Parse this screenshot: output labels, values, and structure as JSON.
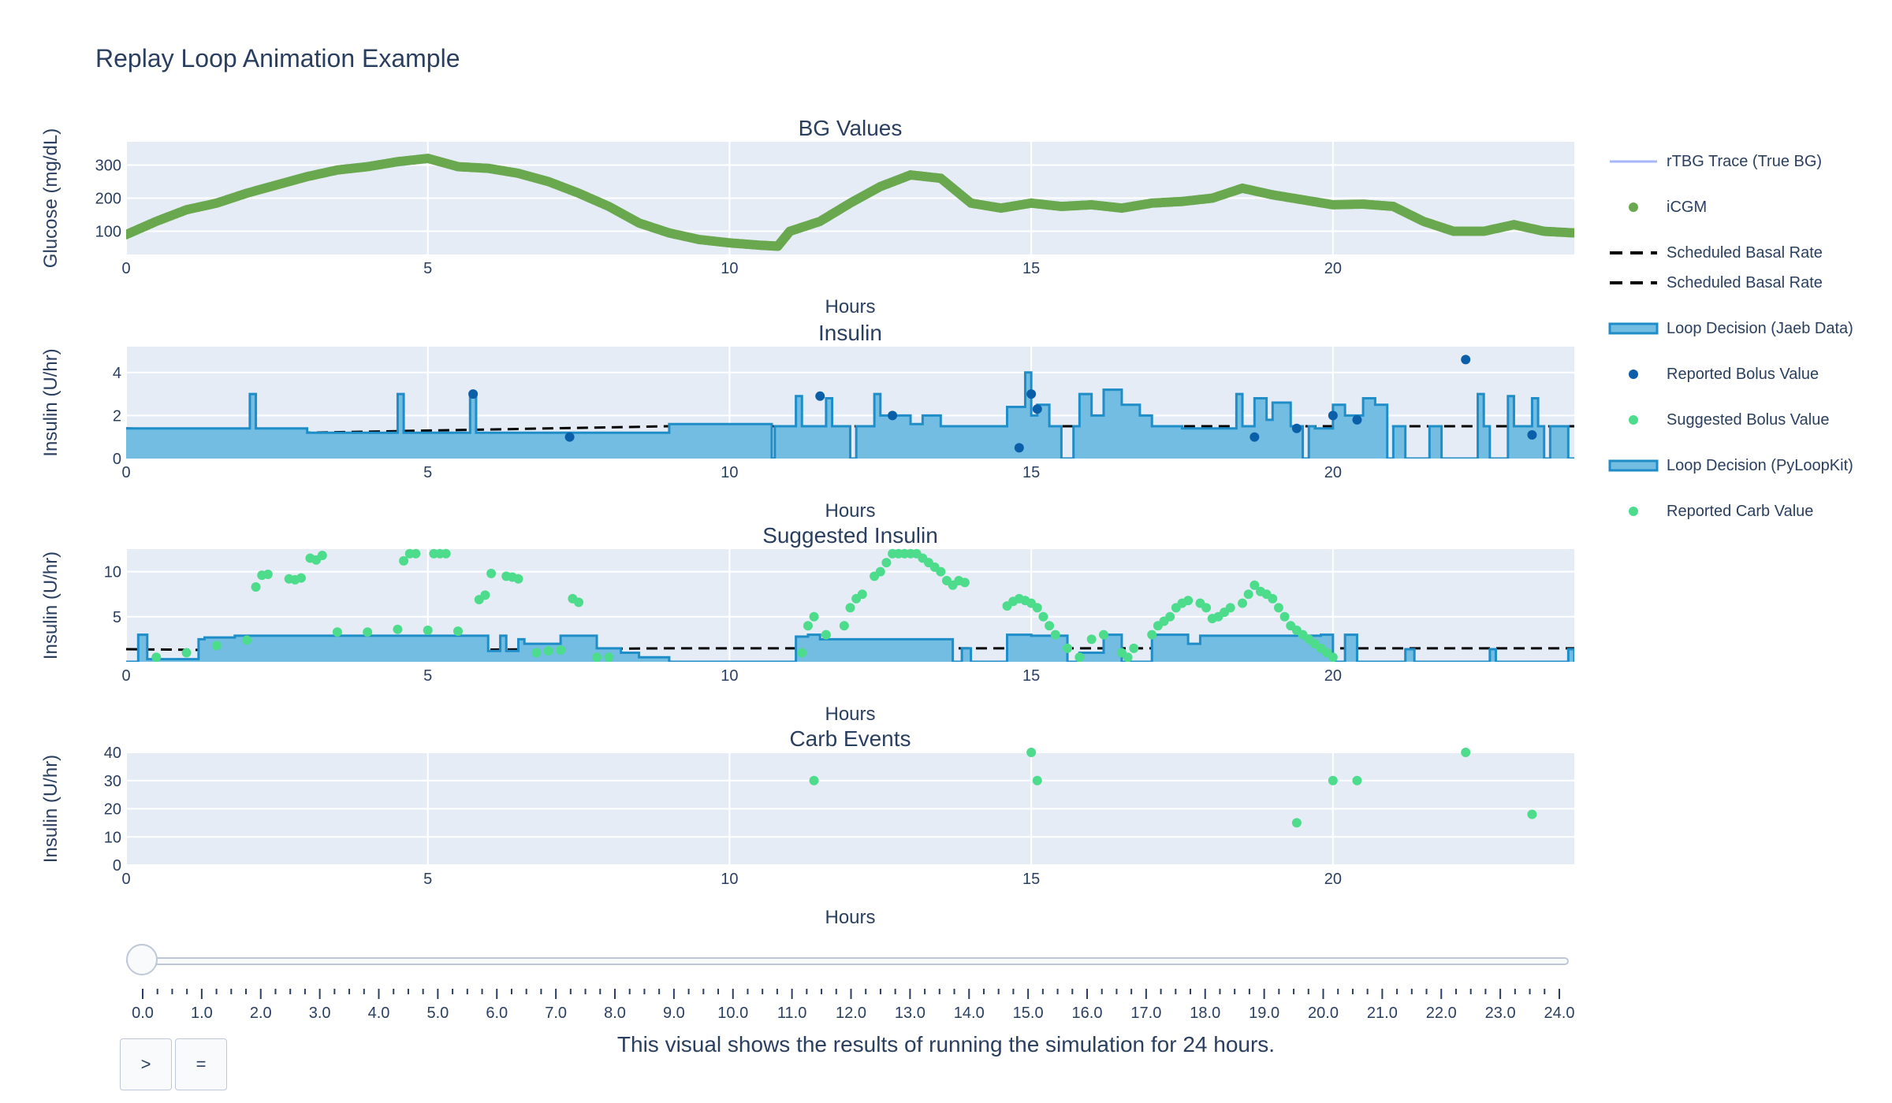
{
  "title": "Replay Loop Animation Example",
  "caption": "This visual shows the results of running the simulation for 24 hours.",
  "buttons": {
    "play": ">",
    "pause": "="
  },
  "colors": {
    "plot_bg": "#e5ecf6",
    "cgm": "#6aa84f",
    "loop_line": "#1f8dc8",
    "loop_fill": "#72bde1",
    "bolus": "#0a5fa8",
    "suggested": "#4ddc8c",
    "carb": "#4ddc8c",
    "rtbg": "#a4b6f7",
    "basal": "#000000"
  },
  "legend": [
    {
      "label": "rTBG Trace (True BG)",
      "symbol": "line",
      "color": "#a4b6f7"
    },
    {
      "label": "iCGM",
      "symbol": "dot",
      "color": "#6aa84f"
    },
    {
      "label": "Scheduled Basal Rate",
      "symbol": "dash",
      "color": "#000000"
    },
    {
      "label": "Scheduled Basal Rate",
      "symbol": "dash",
      "color": "#000000"
    },
    {
      "label": "Loop Decision (Jaeb Data)",
      "symbol": "fill",
      "color": "#1f8dc8"
    },
    {
      "label": "Reported Bolus Value",
      "symbol": "dot",
      "color": "#0a5fa8"
    },
    {
      "label": "Suggested Bolus Value",
      "symbol": "dot",
      "color": "#4ddc8c"
    },
    {
      "label": "Loop Decision (PyLoopKit)",
      "symbol": "fill",
      "color": "#1f8dc8"
    },
    {
      "label": "Reported Carb Value",
      "symbol": "dot",
      "color": "#4ddc8c"
    }
  ],
  "slider": {
    "value": 0.0,
    "ticks": [
      "0.0",
      "1.0",
      "2.0",
      "3.0",
      "4.0",
      "5.0",
      "6.0",
      "7.0",
      "8.0",
      "9.0",
      "10.0",
      "11.0",
      "12.0",
      "13.0",
      "14.0",
      "15.0",
      "16.0",
      "17.0",
      "18.0",
      "19.0",
      "20.0",
      "21.0",
      "22.0",
      "23.0",
      "24.0"
    ]
  },
  "chart_data": [
    {
      "type": "scatter",
      "title": "BG Values",
      "xlabel": "Hours",
      "ylabel": "Glucose (mg/dL)",
      "xlim": [
        0,
        24
      ],
      "ylim": [
        30,
        370
      ],
      "xticks": [
        0,
        5,
        10,
        15,
        20
      ],
      "yticks": [
        100,
        200,
        300
      ],
      "grid": true,
      "series": [
        {
          "name": "iCGM",
          "kind": "markers",
          "x": [
            0,
            0.5,
            1,
            1.5,
            2,
            2.5,
            3,
            3.5,
            4,
            4.5,
            5,
            5.5,
            6,
            6.5,
            7,
            7.5,
            8,
            8.5,
            9,
            9.5,
            10,
            10.5,
            10.8,
            11,
            11.5,
            12,
            12.5,
            13,
            13.5,
            14,
            14.5,
            15,
            15.5,
            16,
            16.5,
            17,
            17.5,
            18,
            18.5,
            19,
            19.5,
            20,
            20.5,
            21,
            21.5,
            22,
            22.5,
            23,
            23.5,
            24
          ],
          "y": [
            90,
            130,
            165,
            185,
            215,
            240,
            265,
            285,
            295,
            310,
            320,
            295,
            290,
            275,
            250,
            215,
            175,
            125,
            95,
            75,
            65,
            58,
            55,
            100,
            130,
            185,
            235,
            270,
            260,
            185,
            170,
            185,
            175,
            180,
            170,
            185,
            190,
            200,
            230,
            210,
            195,
            180,
            182,
            175,
            130,
            100,
            100,
            120,
            100,
            95
          ]
        }
      ]
    },
    {
      "type": "line",
      "title": "Insulin",
      "xlabel": "Hours",
      "ylabel": "Insulin (U/hr)",
      "xlim": [
        0,
        24
      ],
      "ylim": [
        0,
        5.2
      ],
      "xticks": [
        0,
        5,
        10,
        15,
        20
      ],
      "yticks": [
        0,
        2,
        4
      ],
      "grid": true,
      "series": [
        {
          "name": "Scheduled Basal Rate",
          "kind": "dash",
          "x": [
            0,
            3,
            9,
            24
          ],
          "y": [
            1.4,
            1.2,
            1.5,
            1.5
          ]
        },
        {
          "name": "Loop Decision (Jaeb Data)",
          "kind": "step-fill",
          "x": [
            0,
            2.05,
            2.15,
            3,
            4.5,
            4.6,
            5.7,
            5.8,
            9,
            10.7,
            10.75,
            11.1,
            11.2,
            11.6,
            11.7,
            12.0,
            12.1,
            12.4,
            12.5,
            13.0,
            13.2,
            13.5,
            14.6,
            14.9,
            15.0,
            15.1,
            15.3,
            15.5,
            15.7,
            15.8,
            16.0,
            16.2,
            16.5,
            16.8,
            17.0,
            17.5,
            18.4,
            18.5,
            18.7,
            18.9,
            19.0,
            19.3,
            19.5,
            19.6,
            19.7,
            20.0,
            20.2,
            20.5,
            20.7,
            20.9,
            21.0,
            21.2,
            21.6,
            21.8,
            22.4,
            22.5,
            22.6,
            22.9,
            23.0,
            23.3,
            23.4,
            23.5,
            23.6,
            23.9,
            24
          ],
          "y": [
            1.4,
            3.0,
            1.4,
            1.2,
            3.0,
            1.2,
            3.0,
            1.2,
            1.6,
            0,
            1.5,
            2.9,
            1.5,
            2.8,
            1.5,
            0,
            1.5,
            3.0,
            2.0,
            1.6,
            2.0,
            1.5,
            2.4,
            4.0,
            2.0,
            2.5,
            1.5,
            0,
            1.5,
            3.0,
            2.0,
            3.2,
            2.5,
            2.0,
            1.5,
            1.4,
            3.0,
            1.5,
            2.8,
            1.8,
            2.6,
            1.5,
            0,
            1.5,
            1.4,
            2.5,
            2.0,
            2.8,
            2.5,
            0,
            1.5,
            0,
            1.5,
            0,
            3.0,
            1.5,
            0,
            2.9,
            1.5,
            2.8,
            1.5,
            0,
            1.5,
            0,
            0
          ]
        },
        {
          "name": "Reported Bolus Value",
          "kind": "markers",
          "x": [
            5.75,
            7.35,
            11.5,
            12.7,
            14.8,
            15.0,
            15.1,
            18.7,
            19.4,
            20.0,
            20.4,
            22.2,
            23.3
          ],
          "y": [
            3.0,
            1.0,
            2.9,
            2.0,
            0.5,
            3.0,
            2.3,
            1.0,
            1.4,
            2.0,
            1.8,
            4.6,
            1.1
          ]
        }
      ]
    },
    {
      "type": "scatter",
      "title": "Suggested Insulin",
      "xlabel": "Hours",
      "ylabel": "Insulin (U/hr)",
      "xlim": [
        0,
        24
      ],
      "ylim": [
        0,
        12.5
      ],
      "xticks": [
        0,
        5,
        10,
        15,
        20
      ],
      "yticks": [
        5,
        10
      ],
      "grid": true,
      "series": [
        {
          "name": "Scheduled Basal Rate",
          "kind": "dash",
          "x": [
            0,
            3,
            9,
            24
          ],
          "y": [
            1.4,
            1.2,
            1.5,
            1.5
          ]
        },
        {
          "name": "Loop Decision (PyLoopKit)",
          "kind": "step-fill",
          "x": [
            0,
            0.2,
            0.35,
            1.2,
            1.3,
            1.8,
            6.0,
            6.2,
            6.3,
            6.5,
            6.6,
            7.2,
            7.8,
            8.2,
            8.5,
            9.0,
            11.1,
            11.3,
            11.5,
            13.7,
            13.85,
            14.0,
            14.6,
            15.0,
            15.6,
            15.8,
            16.2,
            16.5,
            17.0,
            17.6,
            17.8,
            19.8,
            20.0,
            20.2,
            20.4,
            20.6,
            21.2,
            21.35,
            22.6,
            22.7,
            23.9,
            24
          ],
          "y": [
            0,
            3.0,
            0.3,
            2.5,
            2.7,
            2.9,
            1.2,
            2.9,
            1.2,
            2.5,
            2.0,
            2.9,
            1.5,
            1.0,
            0.5,
            0,
            2.8,
            3.0,
            2.5,
            0,
            1.5,
            0,
            3.0,
            2.9,
            0,
            1.0,
            3.0,
            0,
            3.0,
            2.0,
            2.9,
            3.0,
            0,
            3.0,
            0,
            0,
            1.4,
            0,
            1.4,
            0,
            1.4,
            0
          ]
        },
        {
          "name": "Suggested Bolus Value",
          "kind": "markers",
          "x": [
            0.5,
            1,
            1.5,
            2,
            2.15,
            2.25,
            2.35,
            2.7,
            2.8,
            2.9,
            3.05,
            3.15,
            3.25,
            3.5,
            4,
            4.5,
            4.6,
            4.7,
            4.8,
            5,
            5.1,
            5.2,
            5.3,
            5.5,
            5.85,
            5.95,
            6.05,
            6.3,
            6.4,
            6.5,
            6.8,
            7.0,
            7.2,
            7.4,
            7.5,
            7.8,
            8.0,
            11.2,
            11.3,
            11.4,
            11.6,
            11.9,
            12.0,
            12.1,
            12.2,
            12.4,
            12.5,
            12.6,
            12.7,
            12.8,
            12.9,
            13.0,
            13.1,
            13.2,
            13.3,
            13.4,
            13.5,
            13.6,
            13.7,
            13.8,
            13.9,
            14.6,
            14.7,
            14.8,
            14.9,
            15.0,
            15.1,
            15.2,
            15.3,
            15.4,
            15.6,
            15.8,
            16.0,
            16.2,
            16.5,
            16.6,
            16.7,
            17.0,
            17.1,
            17.2,
            17.3,
            17.4,
            17.5,
            17.6,
            17.8,
            17.9,
            18.0,
            18.1,
            18.2,
            18.3,
            18.5,
            18.6,
            18.7,
            18.8,
            18.9,
            19.0,
            19.1,
            19.2,
            19.3,
            19.4,
            19.5,
            19.6,
            19.7,
            19.8,
            19.9,
            20.0
          ],
          "y": [
            0.5,
            1.0,
            1.8,
            2.4,
            8.3,
            9.6,
            9.7,
            9.2,
            9.1,
            9.3,
            11.5,
            11.3,
            11.8,
            3.3,
            3.3,
            3.6,
            11.2,
            12.0,
            12.0,
            3.5,
            12.0,
            12.0,
            12.0,
            3.4,
            6.9,
            7.4,
            9.8,
            9.5,
            9.4,
            9.2,
            1.0,
            1.2,
            1.3,
            7.0,
            6.6,
            0.5,
            0.5,
            1.0,
            4.0,
            5.0,
            3.0,
            4.0,
            6.0,
            7.0,
            7.5,
            9.5,
            10.0,
            11.0,
            12.0,
            12.0,
            12.0,
            12.0,
            12.0,
            11.5,
            11.0,
            10.5,
            10.0,
            9.0,
            8.5,
            9.0,
            8.8,
            6.2,
            6.7,
            7.0,
            6.8,
            6.5,
            6.0,
            5.0,
            4.0,
            3.0,
            1.5,
            0.5,
            2.5,
            3.0,
            1.0,
            0.5,
            1.5,
            3.0,
            4.0,
            4.5,
            5.0,
            6.0,
            6.5,
            6.8,
            6.5,
            6.0,
            4.8,
            5.0,
            5.5,
            6.0,
            6.5,
            7.5,
            8.5,
            7.8,
            7.5,
            7.0,
            6.0,
            5.0,
            4.0,
            3.5,
            3.0,
            2.5,
            2.0,
            1.5,
            1.0,
            0.5
          ]
        }
      ]
    },
    {
      "type": "scatter",
      "title": "Carb Events",
      "xlabel": "Hours",
      "ylabel": "Insulin (U/hr)",
      "xlim": [
        0,
        24
      ],
      "ylim": [
        0,
        40
      ],
      "xticks": [
        0,
        5,
        10,
        15,
        20
      ],
      "yticks": [
        0,
        10,
        20,
        30,
        40
      ],
      "grid": true,
      "series": [
        {
          "name": "Reported Carb Value",
          "kind": "markers",
          "x": [
            11.4,
            15.0,
            15.1,
            19.4,
            20.0,
            20.4,
            22.2,
            23.3
          ],
          "y": [
            30,
            40,
            30,
            15,
            30,
            30,
            40,
            18
          ]
        }
      ]
    }
  ]
}
